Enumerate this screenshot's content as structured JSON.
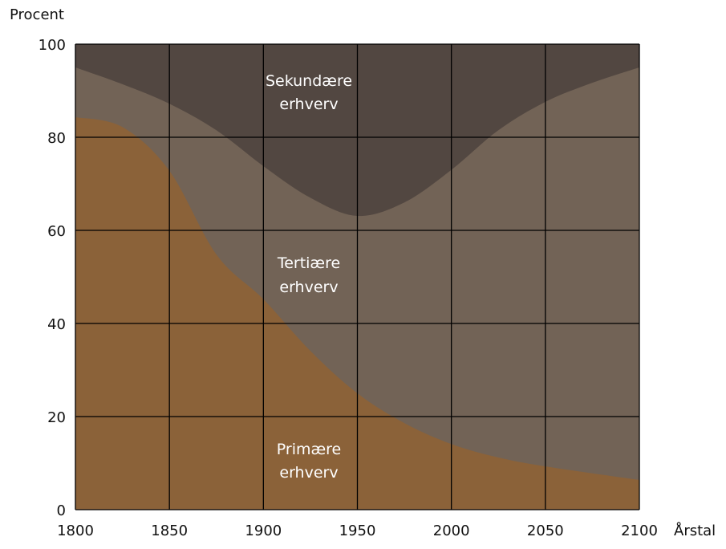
{
  "chart_data": {
    "type": "area",
    "stacked": true,
    "title": "",
    "xlabel": "Årstal",
    "ylabel": "Procent",
    "xlim": [
      1800,
      2100
    ],
    "ylim": [
      0,
      100
    ],
    "grid": true,
    "x_ticks": [
      "1800",
      "1850",
      "1900",
      "1950",
      "2000",
      "2050",
      "2100"
    ],
    "y_ticks": [
      "0",
      "20",
      "40",
      "60",
      "80",
      "100"
    ],
    "x": [
      1800,
      1825,
      1850,
      1875,
      1900,
      1925,
      1950,
      1975,
      2000,
      2025,
      2050,
      2075,
      2100
    ],
    "series": [
      {
        "name": "Primære erhverv",
        "label_lines": [
          "Primære",
          "erhverv"
        ],
        "color": "#8b6239",
        "values": [
          84.3,
          82.2,
          72.8,
          54.8,
          45.2,
          34.1,
          25.0,
          18.6,
          14.1,
          11.2,
          9.3,
          7.8,
          6.4
        ]
      },
      {
        "name": "Tertiære erhverv",
        "label_lines": [
          "Tertiære",
          "erhverv"
        ],
        "color": "#726356",
        "cumulative_upper": [
          95.0,
          91.4,
          87.2,
          81.5,
          73.8,
          67.0,
          63.1,
          66.0,
          73.0,
          81.5,
          87.6,
          91.7,
          95.0
        ]
      },
      {
        "name": "Sekundære erhverv",
        "label_lines": [
          "Sekundære",
          "erhverv"
        ],
        "color": "#524741",
        "cumulative_upper": [
          100,
          100,
          100,
          100,
          100,
          100,
          100,
          100,
          100,
          100,
          100,
          100,
          100
        ]
      }
    ]
  }
}
